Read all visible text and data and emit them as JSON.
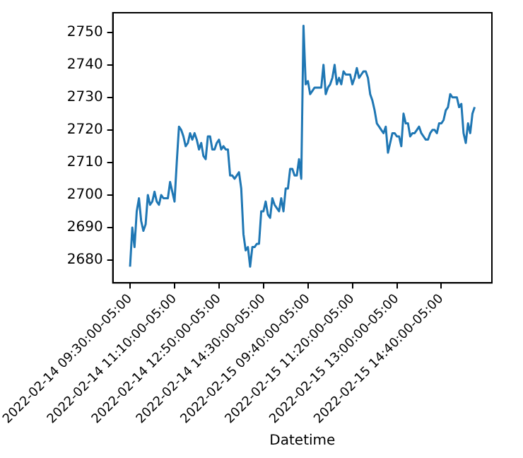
{
  "chart_data": {
    "type": "line",
    "xlabel": "Datetime",
    "categories": [
      "2022-02-14 09:30:00-05:00",
      null,
      null,
      null,
      null,
      null,
      null,
      null,
      null,
      null,
      null,
      null,
      null,
      null,
      null,
      null,
      null,
      null,
      null,
      null,
      "2022-02-14 11:10:00-05:00",
      null,
      null,
      null,
      null,
      null,
      null,
      null,
      null,
      null,
      null,
      null,
      null,
      null,
      null,
      null,
      null,
      null,
      null,
      null,
      "2022-02-14 12:50:00-05:00",
      null,
      null,
      null,
      null,
      null,
      null,
      null,
      null,
      null,
      null,
      null,
      null,
      null,
      null,
      null,
      null,
      null,
      null,
      null,
      "2022-02-14 14:30:00-05:00",
      null,
      null,
      null,
      null,
      null,
      null,
      null,
      null,
      null,
      null,
      null,
      null,
      null,
      null,
      null,
      null,
      null,
      null,
      null,
      "2022-02-15 09:40:00-05:00",
      null,
      null,
      null,
      null,
      null,
      null,
      null,
      null,
      null,
      null,
      null,
      null,
      null,
      null,
      null,
      null,
      null,
      null,
      null,
      "2022-02-15 11:20:00-05:00",
      null,
      null,
      null,
      null,
      null,
      null,
      null,
      null,
      null,
      null,
      null,
      null,
      null,
      null,
      null,
      null,
      null,
      null,
      null,
      "2022-02-15 13:00:00-05:00",
      null,
      null,
      null,
      null,
      null,
      null,
      null,
      null,
      null,
      null,
      null,
      null,
      null,
      null,
      null,
      null,
      null,
      null,
      null,
      "2022-02-15 14:40:00-05:00",
      null,
      null,
      null,
      null,
      null,
      null,
      null,
      null,
      null,
      null,
      null,
      null,
      null,
      null,
      null
    ],
    "series": [
      {
        "color": "#1f77b4",
        "values": [
          2678,
          2690,
          2684,
          2695,
          2699,
          2692,
          2689,
          2691,
          2700,
          2697,
          2698,
          2701,
          2698,
          2697,
          2700,
          2699,
          2699,
          2699,
          2704,
          2701,
          2698,
          2710,
          2721,
          2720,
          2718,
          2715,
          2716,
          2719,
          2717,
          2719,
          2717,
          2714,
          2716,
          2712,
          2711,
          2718,
          2718,
          2714,
          2714,
          2716,
          2717,
          2714,
          2715,
          2714,
          2714,
          2706,
          2706,
          2705,
          2706,
          2707,
          2702,
          2688,
          2683,
          2684,
          2678,
          2684,
          2684,
          2685,
          2685,
          2695,
          2695,
          2698,
          2694,
          2693,
          2699,
          2697,
          2696,
          2695,
          2699,
          2695,
          2702,
          2702,
          2708,
          2708,
          2706,
          2706,
          2711,
          2705,
          2752,
          2734,
          2735,
          2731,
          2732,
          2733,
          2733,
          2733,
          2733,
          2740,
          2731,
          2733,
          2734,
          2736,
          2740,
          2734,
          2736,
          2734,
          2738,
          2737,
          2737,
          2737,
          2734,
          2736,
          2739,
          2736,
          2737,
          2738,
          2738,
          2736,
          2731,
          2729,
          2726,
          2722,
          2721,
          2720,
          2719,
          2721,
          2713,
          2716,
          2719,
          2719,
          2718,
          2718,
          2715,
          2725,
          2722,
          2722,
          2718,
          2719,
          2719,
          2720,
          2721,
          2719,
          2718,
          2717,
          2717,
          2719,
          2720,
          2720,
          2719,
          2722,
          2722,
          2723,
          2726,
          2727,
          2731,
          2730,
          2730,
          2730,
          2727,
          2728,
          2719,
          2716,
          2722,
          2719,
          2725,
          2727
        ]
      }
    ],
    "ylim": [
      2673,
      2756
    ],
    "yticks": [
      2680,
      2690,
      2700,
      2710,
      2720,
      2730,
      2740,
      2750
    ],
    "grid": false,
    "legend": false,
    "marker": "none",
    "line_style": "solid"
  }
}
